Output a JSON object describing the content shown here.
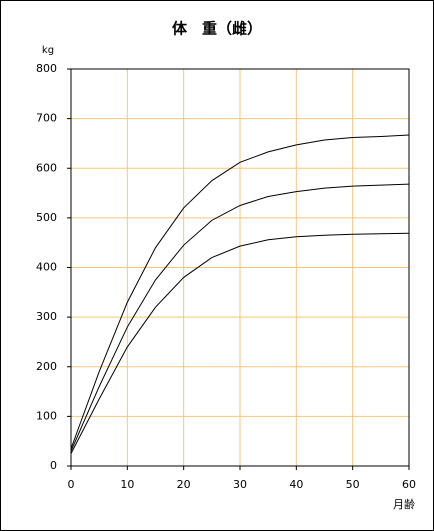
{
  "chart_data": {
    "type": "line",
    "title": "体　重（雌）",
    "y_label": "kg",
    "x_label": "月齢",
    "x": [
      0,
      5,
      10,
      15,
      20,
      25,
      30,
      35,
      40,
      45,
      50,
      55,
      60
    ],
    "series": [
      {
        "color": "#000000",
        "values": [
          35,
          190,
          330,
          440,
          520,
          575,
          612,
          633,
          647,
          657,
          662,
          664,
          667
        ]
      },
      {
        "color": "#000000",
        "values": [
          30,
          160,
          280,
          375,
          445,
          495,
          525,
          543,
          553,
          560,
          564,
          566,
          568
        ]
      },
      {
        "color": "#000000",
        "values": [
          25,
          135,
          240,
          320,
          380,
          420,
          443,
          456,
          462,
          465,
          467,
          468,
          469
        ]
      }
    ],
    "xlim": [
      0,
      60
    ],
    "xticks": [
      0,
      10,
      20,
      30,
      40,
      50,
      60
    ],
    "ylim": [
      0,
      800
    ],
    "yticks": [
      0,
      100,
      200,
      300,
      400,
      500,
      600,
      700,
      800
    ],
    "grid": true,
    "grid_color": "#f7c67a"
  }
}
